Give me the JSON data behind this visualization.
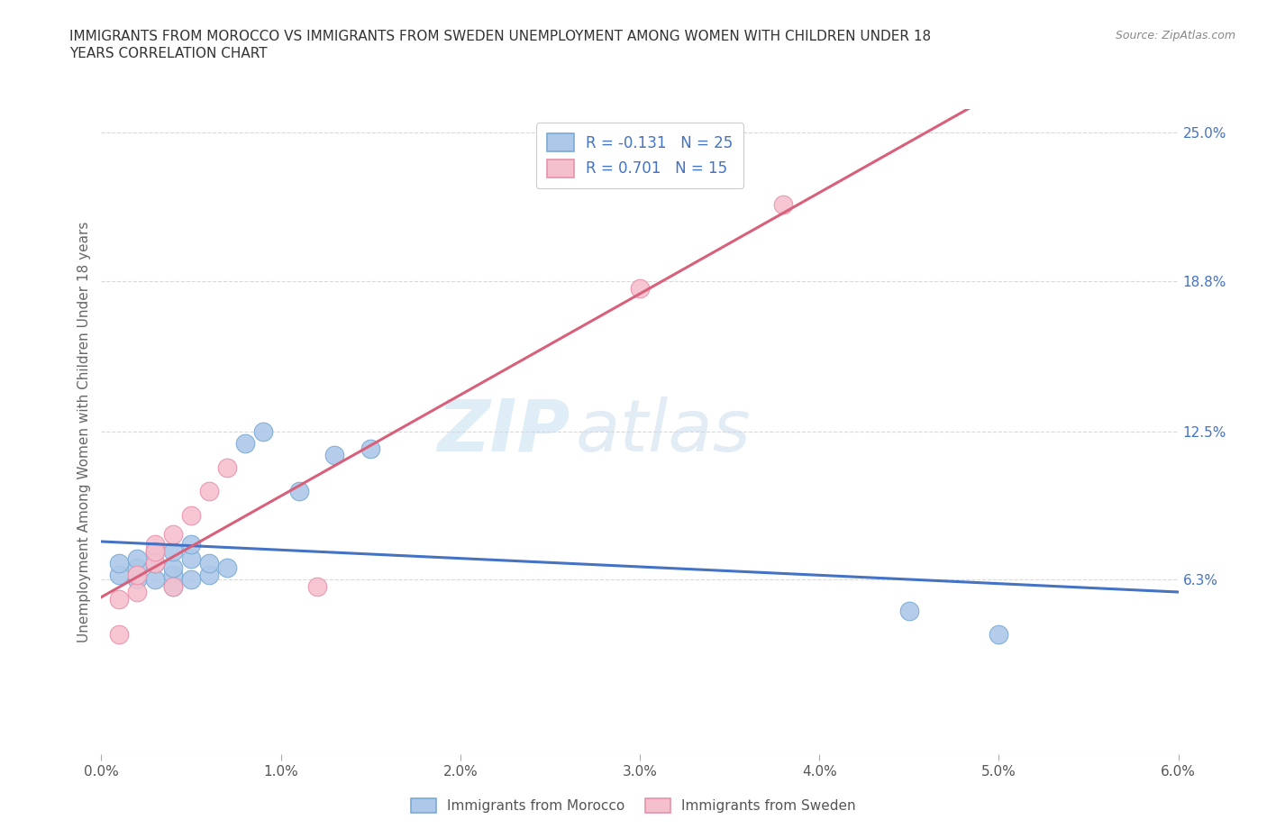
{
  "title": "IMMIGRANTS FROM MOROCCO VS IMMIGRANTS FROM SWEDEN UNEMPLOYMENT AMONG WOMEN WITH CHILDREN UNDER 18\nYEARS CORRELATION CHART",
  "source": "Source: ZipAtlas.com",
  "ylabel": "Unemployment Among Women with Children Under 18 years",
  "xlim": [
    0.0,
    0.06
  ],
  "ylim": [
    -0.01,
    0.26
  ],
  "plot_ylim": [
    -0.01,
    0.26
  ],
  "xtick_labels": [
    "0.0%",
    "1.0%",
    "2.0%",
    "3.0%",
    "4.0%",
    "5.0%",
    "6.0%"
  ],
  "xtick_vals": [
    0.0,
    0.01,
    0.02,
    0.03,
    0.04,
    0.05,
    0.06
  ],
  "ytick_labels": [
    "6.3%",
    "12.5%",
    "18.8%",
    "25.0%"
  ],
  "ytick_vals": [
    0.063,
    0.125,
    0.188,
    0.25
  ],
  "morocco_color": "#adc8e8",
  "morocco_edge": "#7aaad4",
  "sweden_color": "#f5c0ce",
  "sweden_edge": "#e891aa",
  "trend_morocco_color": "#4472c4",
  "trend_sweden_color": "#d9607a",
  "R_morocco": -0.131,
  "N_morocco": 25,
  "R_sweden": 0.701,
  "N_sweden": 15,
  "background_color": "#ffffff",
  "grid_color": "#d8d8d8",
  "watermark_zip": "ZIP",
  "watermark_atlas": "atlas",
  "morocco_x": [
    0.001,
    0.001,
    0.002,
    0.002,
    0.002,
    0.003,
    0.003,
    0.003,
    0.004,
    0.004,
    0.004,
    0.004,
    0.005,
    0.005,
    0.005,
    0.006,
    0.006,
    0.007,
    0.008,
    0.009,
    0.011,
    0.013,
    0.015,
    0.045,
    0.05
  ],
  "morocco_y": [
    0.065,
    0.07,
    0.063,
    0.068,
    0.072,
    0.063,
    0.07,
    0.075,
    0.06,
    0.065,
    0.068,
    0.075,
    0.063,
    0.072,
    0.078,
    0.065,
    0.07,
    0.068,
    0.12,
    0.125,
    0.1,
    0.115,
    0.118,
    0.05,
    0.04
  ],
  "sweden_x": [
    0.001,
    0.001,
    0.002,
    0.002,
    0.003,
    0.003,
    0.003,
    0.004,
    0.004,
    0.005,
    0.006,
    0.007,
    0.012,
    0.03,
    0.038
  ],
  "sweden_y": [
    0.04,
    0.055,
    0.058,
    0.065,
    0.07,
    0.078,
    0.075,
    0.082,
    0.06,
    0.09,
    0.1,
    0.11,
    0.06,
    0.185,
    0.22
  ]
}
